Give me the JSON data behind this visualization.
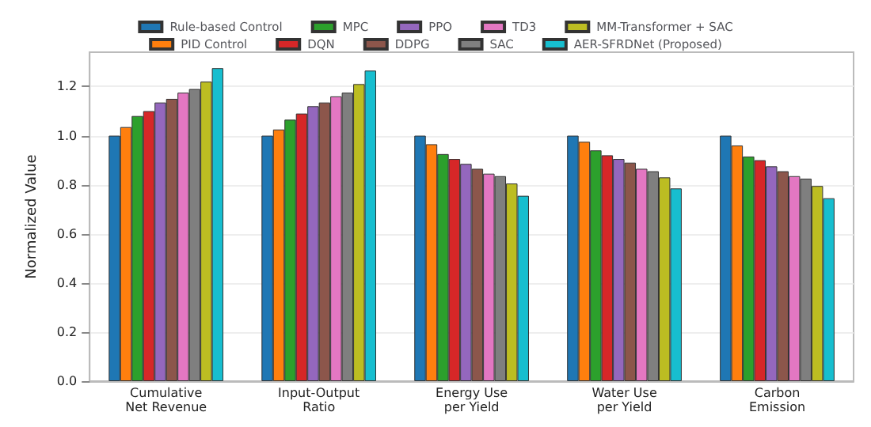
{
  "chart_data": {
    "type": "bar",
    "ylabel": "Normalized Value",
    "categories": [
      "Cumulative\nNet Revenue",
      "Input-Output\nRatio",
      "Energy Use\nper Yield",
      "Water Use\nper Yield",
      "Carbon\nEmission"
    ],
    "series": [
      {
        "name": "Rule-based Control",
        "color": "#1f77b4",
        "values": [
          1.0,
          1.0,
          1.0,
          1.0,
          1.0
        ]
      },
      {
        "name": "PID Control",
        "color": "#ff7f0e",
        "values": [
          1.035,
          1.025,
          0.965,
          0.975,
          0.96
        ]
      },
      {
        "name": "MPC",
        "color": "#2ca02c",
        "values": [
          1.08,
          1.065,
          0.925,
          0.94,
          0.915
        ]
      },
      {
        "name": "DQN",
        "color": "#d62728",
        "values": [
          1.1,
          1.09,
          0.905,
          0.92,
          0.9
        ]
      },
      {
        "name": "PPO",
        "color": "#9467bd",
        "values": [
          1.135,
          1.12,
          0.885,
          0.905,
          0.875
        ]
      },
      {
        "name": "DDPG",
        "color": "#8c564b",
        "values": [
          1.15,
          1.135,
          0.865,
          0.89,
          0.855
        ]
      },
      {
        "name": "TD3",
        "color": "#e377c2",
        "values": [
          1.175,
          1.16,
          0.845,
          0.865,
          0.835
        ]
      },
      {
        "name": "SAC",
        "color": "#7f7f7f",
        "values": [
          1.19,
          1.175,
          0.835,
          0.855,
          0.825
        ]
      },
      {
        "name": "MM-Transformer + SAC",
        "color": "#bcbd22",
        "values": [
          1.22,
          1.21,
          0.805,
          0.83,
          0.795
        ]
      },
      {
        "name": "AER-SFRDNet (Proposed)",
        "color": "#17becf",
        "values": [
          1.275,
          1.265,
          0.755,
          0.785,
          0.745
        ]
      }
    ],
    "ylim": [
      0,
      1.34
    ],
    "yticks": [
      {
        "value": 0,
        "label": "0.0"
      },
      {
        "value": 0.2,
        "label": "0.2"
      },
      {
        "value": 0.4,
        "label": "0.4"
      },
      {
        "value": 0.6,
        "label": "0.6"
      },
      {
        "value": 0.8,
        "label": "0.8"
      },
      {
        "value": 1,
        "label": "1.0"
      },
      {
        "value": 1.2,
        "label": "1.2"
      }
    ],
    "grid": "y",
    "legend": "top"
  }
}
